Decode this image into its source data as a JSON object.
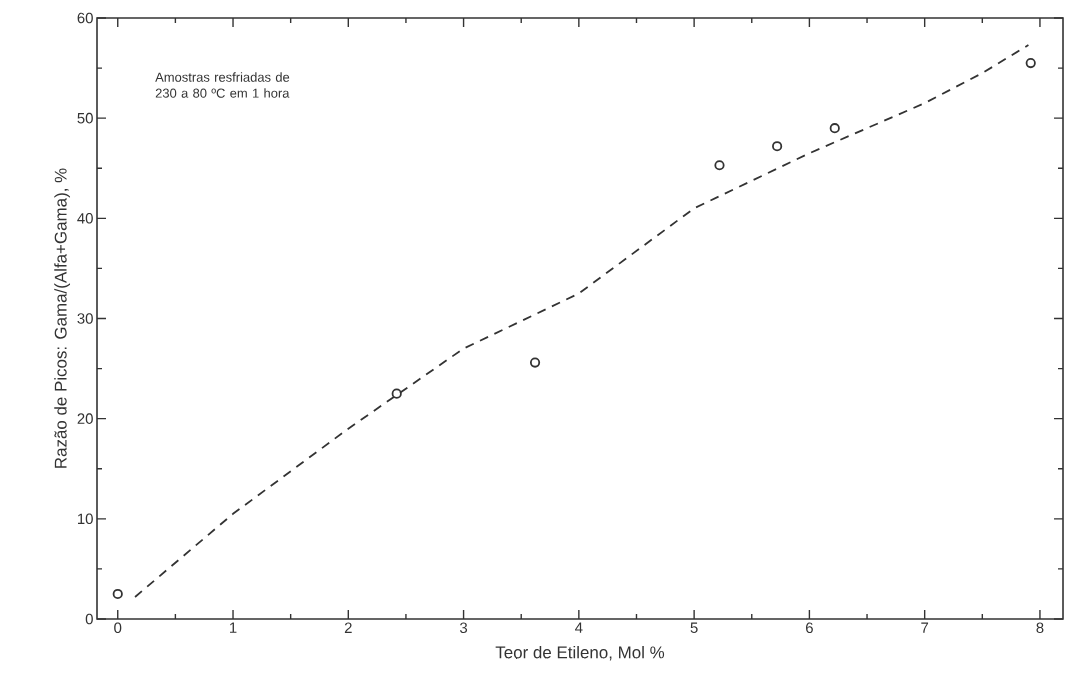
{
  "chart_data": {
    "type": "scatter",
    "xlabel": "Teor de Etileno, Mol %",
    "ylabel": "Razão de Picos: Gama/(Alfa+Gama), %",
    "annotations": [
      "Amostras resfriadas de 230 a 80 ºC em 1 hora"
    ],
    "xlim": [
      -0.18,
      8.2
    ],
    "ylim": [
      0,
      60
    ],
    "xticks": [
      0,
      1,
      2,
      3,
      4,
      5,
      6,
      7,
      8
    ],
    "yticks": [
      0,
      10,
      20,
      30,
      40,
      50,
      60
    ],
    "marker": "circle",
    "series": [
      {
        "color": "#333333",
        "x": [
          0,
          2.42,
          3.62,
          5.22,
          5.72,
          6.22,
          7.92
        ],
        "values": [
          2.5,
          22.5,
          25.6,
          45.3,
          47.2,
          49.0,
          55.5
        ]
      },
      {
        "type": "line",
        "color": "#333333",
        "line_style": "dashed",
        "marker": "none",
        "x": [
          0.15,
          1,
          2,
          3,
          4,
          5,
          6,
          7,
          7.5,
          7.9
        ],
        "values": [
          2.2,
          10.5,
          19,
          27,
          32.5,
          41,
          46.5,
          51.5,
          54.5,
          57.3
        ]
      }
    ]
  }
}
